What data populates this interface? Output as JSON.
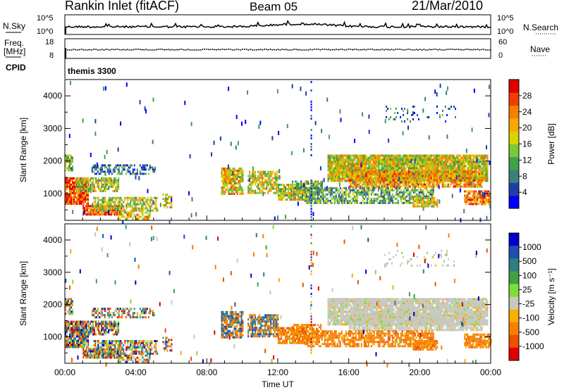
{
  "header": {
    "station": "Rankin Inlet (fitACF)",
    "beam": "Beam 05",
    "date": "21/Mar/2010"
  },
  "side_labels": {
    "nsky": "N.Sky",
    "nsearch": "N.Search",
    "freq_line1": "Freq.",
    "freq_line2": "[MHz]",
    "nave": "Nave",
    "cpid": "CPID"
  },
  "top_axes": {
    "nsky_ticks": [
      "10^5",
      "10^0"
    ],
    "nsearch_ticks": [
      "10^5",
      "10^0"
    ],
    "freq_ticks": [
      "18",
      "8"
    ],
    "nave_ticks": [
      "60",
      "0"
    ]
  },
  "cpid_text": "themis 3300",
  "x_axis": {
    "title": "Time UT",
    "ticks": [
      "00:00",
      "04:00",
      "08:00",
      "12:00",
      "16:00",
      "20:00",
      "00:00"
    ]
  },
  "colors": {
    "nsky_line": "#000000",
    "axis": "#000000"
  },
  "chart_data": [
    {
      "type": "heatmap",
      "name": "power",
      "ylabel": "Slant Range [km]",
      "yticks": [
        "1000",
        "2000",
        "3000",
        "4000"
      ],
      "ylim": [
        180,
        4500
      ],
      "xlim_hours": [
        0,
        24
      ],
      "colorbar": {
        "label": "Power [dB]",
        "ticks": [
          "4",
          "8",
          "12",
          "16",
          "20",
          "24",
          "28"
        ],
        "colors": [
          "#0000ff",
          "#1f3fa8",
          "#3d7f7b",
          "#43a04a",
          "#7cc83b",
          "#d9d300",
          "#f7a800",
          "#f77f00",
          "#ef3f00",
          "#e00000"
        ]
      }
    },
    {
      "type": "heatmap",
      "name": "velocity",
      "ylabel": "Slant Range [km]",
      "yticks": [
        "1000",
        "2000",
        "3000",
        "4000"
      ],
      "ylim": [
        180,
        4500
      ],
      "xlim_hours": [
        0,
        24
      ],
      "colorbar": {
        "label": "Velocity [m s⁻¹]",
        "ticks": [
          "1000",
          "500",
          "100",
          "25",
          "-25",
          "-100",
          "-500",
          "-1000"
        ],
        "colors": [
          "#0000cc",
          "#1f4fb0",
          "#2f7f7f",
          "#3fa048",
          "#7fdc3a",
          "#c8c8c0",
          "#f7b000",
          "#f78000",
          "#ef5000",
          "#e00000"
        ]
      }
    }
  ]
}
